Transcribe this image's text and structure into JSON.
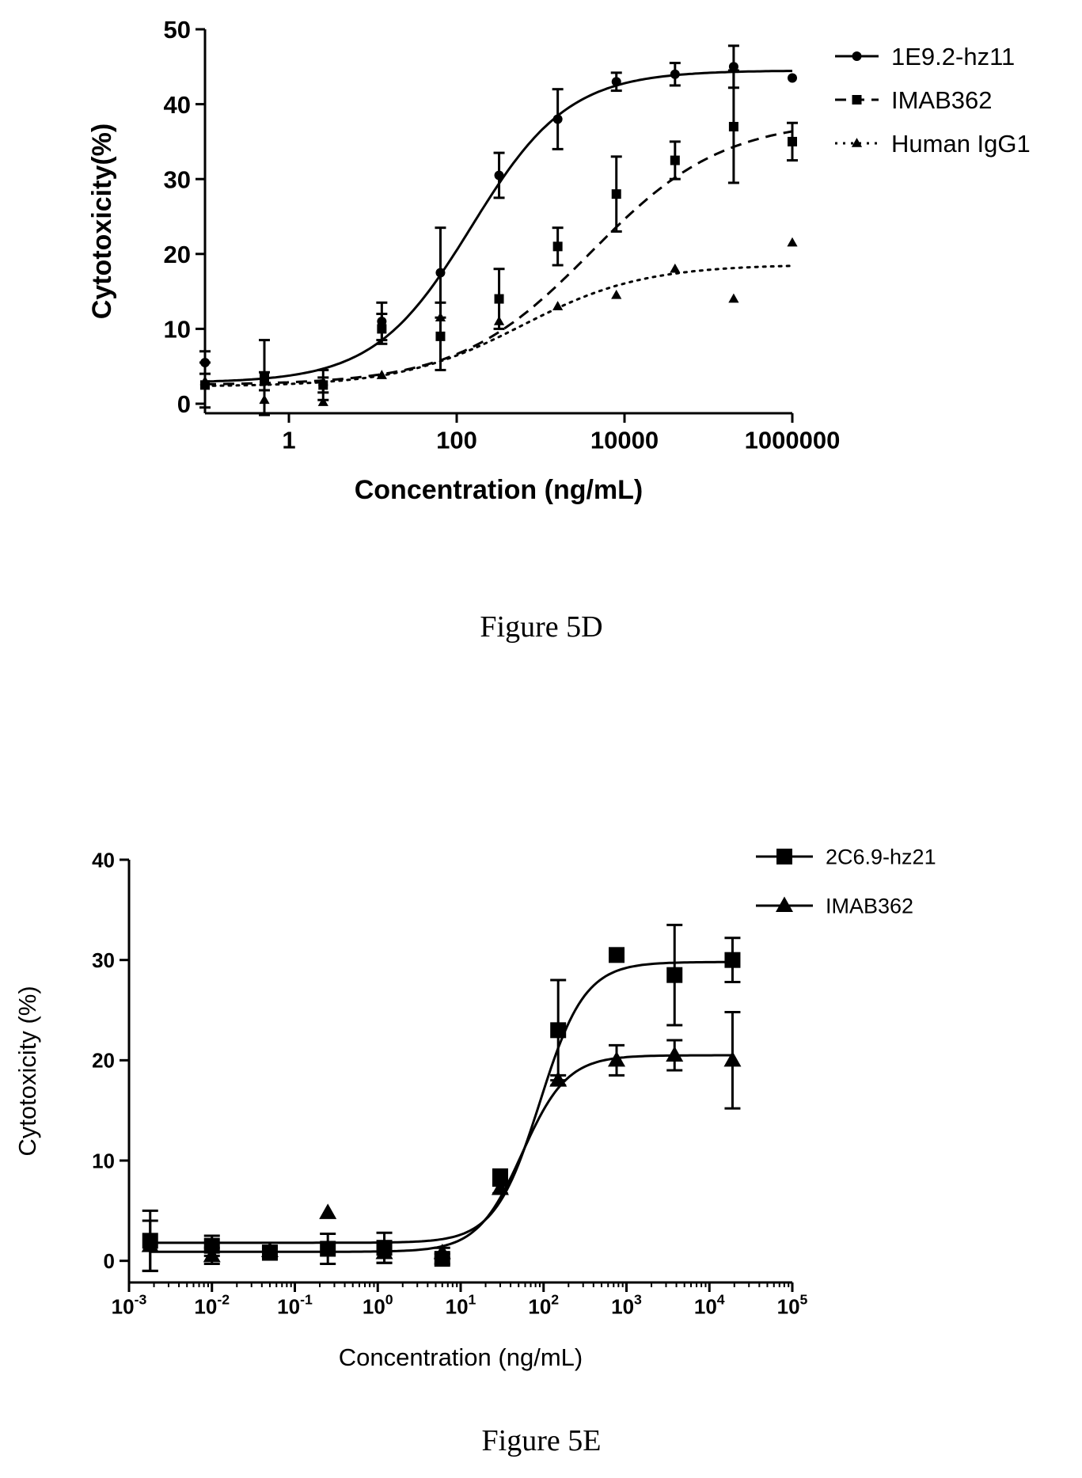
{
  "chart_data": [
    {
      "type": "scatter",
      "caption": "Figure 5D",
      "xlabel": "Concentration (ng/mL)",
      "ylabel": "Cytotoxicity(%)",
      "xscale": "log",
      "xlim": [
        0.1,
        1000000
      ],
      "ylim": [
        0,
        50
      ],
      "x_ticks": [
        1,
        100,
        10000,
        1000000
      ],
      "x_tick_labels": [
        "1",
        "100",
        "10000",
        "1000000"
      ],
      "y_ticks": [
        0,
        10,
        20,
        30,
        40,
        50
      ],
      "y_tick_labels": [
        "0",
        "10",
        "20",
        "30",
        "40",
        "50"
      ],
      "legend_position": "top-right",
      "color": "#000000",
      "series": [
        {
          "name": "1E9.2-hz11",
          "marker": "circle",
          "line": "solid",
          "fit": {
            "bottom": 2.8,
            "top": 44.5,
            "ec50": 150,
            "hill": 0.75
          },
          "points": [
            {
              "x": 0.1,
              "y": 5.5,
              "err": 1.5
            },
            {
              "x": 0.51,
              "y": 3.0,
              "err": 1.2
            },
            {
              "x": 2.56,
              "y": 2.5,
              "err": 1.0
            },
            {
              "x": 12.8,
              "y": 11.0,
              "err": 2.5
            },
            {
              "x": 64,
              "y": 17.5,
              "err": 6.0
            },
            {
              "x": 320,
              "y": 30.5,
              "err": 3.0
            },
            {
              "x": 1600,
              "y": 38.0,
              "err": 4.0
            },
            {
              "x": 8000,
              "y": 43.0,
              "err": 1.2
            },
            {
              "x": 40000,
              "y": 44.0,
              "err": 1.5
            },
            {
              "x": 200000,
              "y": 45.0,
              "err": 2.8
            },
            {
              "x": 1000000,
              "y": 43.5,
              "err": 0
            }
          ]
        },
        {
          "name": "IMAB362",
          "marker": "square",
          "line": "dashed",
          "fit": {
            "bottom": 2.5,
            "top": 38.0,
            "ec50": 4000,
            "hill": 0.55
          },
          "points": [
            {
              "x": 0.1,
              "y": 2.5,
              "err": 3.0
            },
            {
              "x": 0.51,
              "y": 3.5,
              "err": 5.0
            },
            {
              "x": 2.56,
              "y": 2.5,
              "err": 2.0
            },
            {
              "x": 12.8,
              "y": 10.0,
              "err": 2.0
            },
            {
              "x": 64,
              "y": 9.0,
              "err": 4.5
            },
            {
              "x": 320,
              "y": 14.0,
              "err": 4.0
            },
            {
              "x": 1600,
              "y": 21.0,
              "err": 2.5
            },
            {
              "x": 8000,
              "y": 28.0,
              "err": 5.0
            },
            {
              "x": 40000,
              "y": 32.5,
              "err": 2.5
            },
            {
              "x": 200000,
              "y": 37.0,
              "err": 7.5
            },
            {
              "x": 1000000,
              "y": 35.0,
              "err": 2.5
            }
          ]
        },
        {
          "name": "Human IgG1",
          "marker": "triangle",
          "line": "dotted",
          "fit": {
            "bottom": 2.3,
            "top": 18.6,
            "ec50": 600,
            "hill": 0.6
          },
          "points": [
            {
              "x": 0.1,
              "y": 3.0,
              "err": 0
            },
            {
              "x": 0.51,
              "y": 0.5,
              "err": 0
            },
            {
              "x": 2.56,
              "y": 0.2,
              "err": 0
            },
            {
              "x": 12.8,
              "y": 3.8,
              "err": 0
            },
            {
              "x": 64,
              "y": 11.5,
              "err": 0
            },
            {
              "x": 320,
              "y": 11.0,
              "err": 0
            },
            {
              "x": 1600,
              "y": 13.0,
              "err": 0
            },
            {
              "x": 8000,
              "y": 14.5,
              "err": 0
            },
            {
              "x": 40000,
              "y": 18.0,
              "err": 0
            },
            {
              "x": 200000,
              "y": 14.0,
              "err": 0
            },
            {
              "x": 1000000,
              "y": 21.5,
              "err": 0
            }
          ]
        }
      ]
    },
    {
      "type": "scatter",
      "caption": "Figure 5E",
      "xlabel": "Concentration (ng/mL)",
      "ylabel": "Cytotoxicity (%)",
      "xscale": "log",
      "xlim": [
        0.001,
        100000
      ],
      "ylim": [
        -2,
        40
      ],
      "x_ticks": [
        0.001,
        0.01,
        0.1,
        1,
        10,
        100,
        1000,
        10000,
        100000
      ],
      "x_tick_labels": [
        [
          "10",
          "-3"
        ],
        [
          "10",
          "-2"
        ],
        [
          "10",
          "-1"
        ],
        [
          "10",
          "0"
        ],
        [
          "10",
          "1"
        ],
        [
          "10",
          "2"
        ],
        [
          "10",
          "3"
        ],
        [
          "10",
          "4"
        ],
        [
          "10",
          "5"
        ]
      ],
      "y_ticks": [
        0,
        10,
        20,
        30,
        40
      ],
      "y_tick_labels": [
        "0",
        "10",
        "20",
        "30",
        "40"
      ],
      "legend_position": "top-right",
      "color": "#000000",
      "series": [
        {
          "name": "2C6.9-hz21",
          "marker": "square",
          "line": "solid",
          "fit": {
            "bottom": 1.8,
            "top": 29.8,
            "ec50": 90,
            "hill": 1.6
          },
          "points": [
            {
              "x": 0.0018,
              "y": 2.0,
              "err": 3.0
            },
            {
              "x": 0.01,
              "y": 1.5,
              "err": 1.0
            },
            {
              "x": 0.05,
              "y": 0.8,
              "err": 0.5
            },
            {
              "x": 0.25,
              "y": 1.2,
              "err": 1.5
            },
            {
              "x": 1.2,
              "y": 1.3,
              "err": 1.5
            },
            {
              "x": 6.0,
              "y": 0.2,
              "err": 0.5
            },
            {
              "x": 30,
              "y": 8.3,
              "err": 0.8
            },
            {
              "x": 150,
              "y": 23.0,
              "err": 5.0
            },
            {
              "x": 760,
              "y": 30.5,
              "err": 0.3
            },
            {
              "x": 3800,
              "y": 28.5,
              "err": 5.0
            },
            {
              "x": 19000,
              "y": 30.0,
              "err": 2.2
            }
          ]
        },
        {
          "name": "IMAB362",
          "marker": "triangle",
          "line": "solid",
          "fit": {
            "bottom": 0.9,
            "top": 20.5,
            "ec50": 55,
            "hill": 1.6
          },
          "points": [
            {
              "x": 0.0018,
              "y": 1.5,
              "err": 2.5
            },
            {
              "x": 0.01,
              "y": 0.5,
              "err": 0.8
            },
            {
              "x": 0.05,
              "y": 1.0,
              "err": 0.5
            },
            {
              "x": 0.25,
              "y": 4.8,
              "err": 0
            },
            {
              "x": 1.2,
              "y": 0.8,
              "err": 1.0
            },
            {
              "x": 6.0,
              "y": 0.8,
              "err": 0.5
            },
            {
              "x": 30,
              "y": 7.2,
              "err": 0.5
            },
            {
              "x": 150,
              "y": 18.0,
              "err": 0.5
            },
            {
              "x": 760,
              "y": 20.0,
              "err": 1.5
            },
            {
              "x": 3800,
              "y": 20.5,
              "err": 1.5
            },
            {
              "x": 19000,
              "y": 20.0,
              "err": 4.8
            }
          ]
        }
      ]
    }
  ]
}
